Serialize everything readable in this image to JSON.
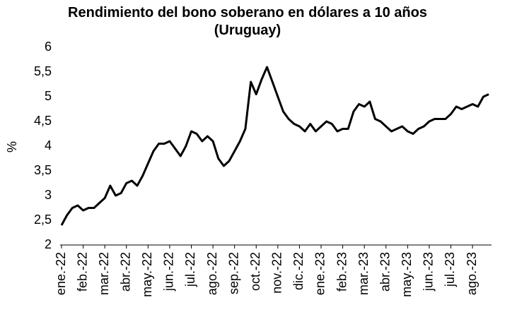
{
  "chart_data": {
    "type": "line",
    "title": "Rendimiento del bono soberano en dólares a 10 años (Uruguay)",
    "y_label": "%",
    "categories": [
      "ene.-22",
      null,
      null,
      null,
      "feb.-22",
      null,
      null,
      null,
      "mar.-22",
      null,
      null,
      null,
      "abr.-22",
      null,
      null,
      null,
      "may.-22",
      null,
      null,
      null,
      "jun.-22",
      null,
      null,
      null,
      "jul.-22",
      null,
      null,
      null,
      "ago.-22",
      null,
      null,
      null,
      "sep.-22",
      null,
      null,
      null,
      "oct.-22",
      null,
      null,
      null,
      "nov.-22",
      null,
      null,
      null,
      "dic.-22",
      null,
      null,
      null,
      "ene.-23",
      null,
      null,
      null,
      "feb.-23",
      null,
      null,
      null,
      "mar.-23",
      null,
      null,
      null,
      "abr.-23",
      null,
      null,
      null,
      "may.-23",
      null,
      null,
      null,
      "jun.-23",
      null,
      null,
      null,
      "jul.-23",
      null,
      null,
      null,
      "ago.-23",
      null,
      null,
      null
    ],
    "series": [
      {
        "name": "Rendimiento",
        "color": "#000000",
        "values": [
          2.4,
          2.6,
          2.75,
          2.8,
          2.7,
          2.75,
          2.75,
          2.85,
          2.95,
          3.2,
          3.0,
          3.05,
          3.25,
          3.3,
          3.2,
          3.4,
          3.65,
          3.9,
          4.05,
          4.05,
          4.1,
          3.95,
          3.8,
          4.0,
          4.3,
          4.25,
          4.1,
          4.2,
          4.1,
          3.75,
          3.6,
          3.7,
          3.9,
          4.1,
          4.35,
          5.3,
          5.05,
          5.35,
          5.6,
          5.3,
          5.0,
          4.7,
          4.55,
          4.45,
          4.4,
          4.3,
          4.45,
          4.3,
          4.4,
          4.5,
          4.45,
          4.3,
          4.35,
          4.35,
          4.7,
          4.85,
          4.8,
          4.9,
          4.55,
          4.5,
          4.4,
          4.3,
          4.35,
          4.4,
          4.3,
          4.25,
          4.35,
          4.4,
          4.5,
          4.55,
          4.55,
          4.55,
          4.65,
          4.8,
          4.75,
          4.8,
          4.85,
          4.8,
          5.0,
          5.05
        ]
      }
    ],
    "ylim": [
      2,
      6
    ],
    "yticks": [
      2,
      {
        "value": 2.5,
        "label": "2,5"
      },
      3,
      {
        "value": 3.5,
        "label": "3,5"
      },
      4,
      {
        "value": 4.5,
        "label": "4,5"
      },
      5,
      {
        "value": 5.5,
        "label": "5,5"
      },
      6
    ],
    "grid": false
  }
}
